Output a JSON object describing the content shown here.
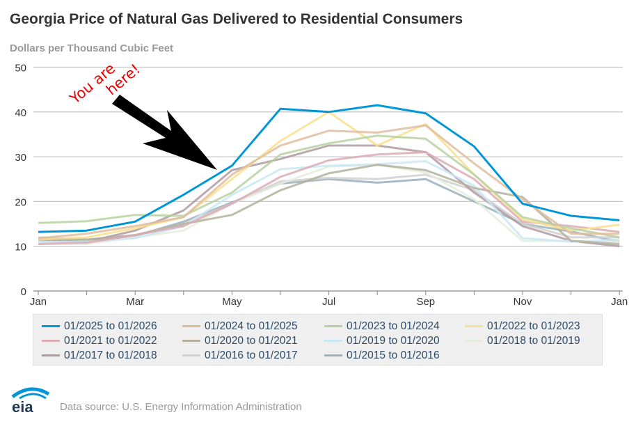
{
  "title": "Georgia Price of Natural Gas Delivered to Residential Consumers",
  "source": "Data source: U.S. Energy Information Administration",
  "logo_text": "eia",
  "annotation": "You are here!",
  "chart_data": {
    "type": "line",
    "title": "Georgia Price of Natural Gas Delivered to Residential Consumers",
    "ylabel": "Dollars per Thousand Cubic Feet",
    "xlabel": "",
    "ylim": [
      0,
      50
    ],
    "yticks": [
      "0",
      "10",
      "20",
      "30",
      "40",
      "50"
    ],
    "x": [
      "Jan",
      "Feb",
      "Mar",
      "Apr",
      "May",
      "Jun",
      "Jul",
      "Aug",
      "Sep",
      "Oct",
      "Nov",
      "Dec",
      "Jan"
    ],
    "xtick_labels": [
      "Jan",
      "Mar",
      "May",
      "Jul",
      "Sep",
      "Nov",
      "Jan"
    ],
    "grid": true,
    "legend_position": "bottom",
    "series": [
      {
        "name": "01/2025 to 01/2026",
        "color": "#0096d7",
        "values": [
          13.2,
          13.5,
          15.5,
          21.5,
          28,
          40.7,
          40,
          41.5,
          39.7,
          32.3,
          19.5,
          16.8,
          15.8
        ]
      },
      {
        "name": "01/2024 to 01/2025",
        "color": "#dfbd9d",
        "values": [
          11.8,
          12.8,
          14.5,
          16.5,
          26,
          32.5,
          35.8,
          35.4,
          37,
          28.5,
          20.5,
          12.8,
          12.8
        ]
      },
      {
        "name": "01/2023 to 01/2024",
        "color": "#b7d2a2",
        "values": [
          15.2,
          15.6,
          17,
          16.8,
          22,
          30.5,
          33,
          34.7,
          34,
          26,
          16.5,
          14,
          12
        ]
      },
      {
        "name": "01/2022 to 01/2023",
        "color": "#f8e08f",
        "values": [
          11.5,
          12,
          14,
          16.5,
          25,
          33.5,
          40,
          32.5,
          37.3,
          26,
          16,
          13.5,
          14.8
        ]
      },
      {
        "name": "01/2021 to 01/2022",
        "color": "#dbacb4",
        "values": [
          10.5,
          10.8,
          12.5,
          14.5,
          19.5,
          25.5,
          29.2,
          30.5,
          31,
          25,
          15.5,
          14.5,
          13.2
        ]
      },
      {
        "name": "01/2020 to 01/2021",
        "color": "#b3b09c",
        "values": [
          11.8,
          11.5,
          12.5,
          15,
          17,
          22.5,
          26.3,
          28.2,
          27,
          23,
          21,
          11.2,
          10.5
        ]
      },
      {
        "name": "01/2019 to 01/2020",
        "color": "#c9e8f6",
        "values": [
          11,
          11,
          11.8,
          14.5,
          21.5,
          27.2,
          28,
          28.3,
          29,
          23.5,
          11.8,
          11,
          11.5
        ]
      },
      {
        "name": "01/2018 to 01/2019",
        "color": "#e4eddc",
        "values": [
          10.5,
          10.5,
          12,
          13.5,
          19.5,
          24,
          27.8,
          28.2,
          26.5,
          20.5,
          11.2,
          11.2,
          11
        ]
      },
      {
        "name": "01/2017 to 01/2018",
        "color": "#b09aa2",
        "values": [
          11.5,
          11,
          13.5,
          18,
          27,
          29.5,
          32.5,
          32.5,
          31,
          22,
          14.5,
          11.2,
          10
        ]
      },
      {
        "name": "01/2016 to 01/2017",
        "color": "#d0d0d0",
        "values": [
          12,
          11.5,
          12.5,
          15,
          19.5,
          24.5,
          25.3,
          25,
          26,
          22.5,
          15,
          12,
          12
        ]
      },
      {
        "name": "01/2015 to 01/2016",
        "color": "#9eb0bc",
        "values": [
          11.3,
          11,
          12.3,
          15.5,
          19.8,
          24,
          25,
          24.2,
          25,
          20,
          15,
          13.3,
          11
        ]
      }
    ]
  }
}
